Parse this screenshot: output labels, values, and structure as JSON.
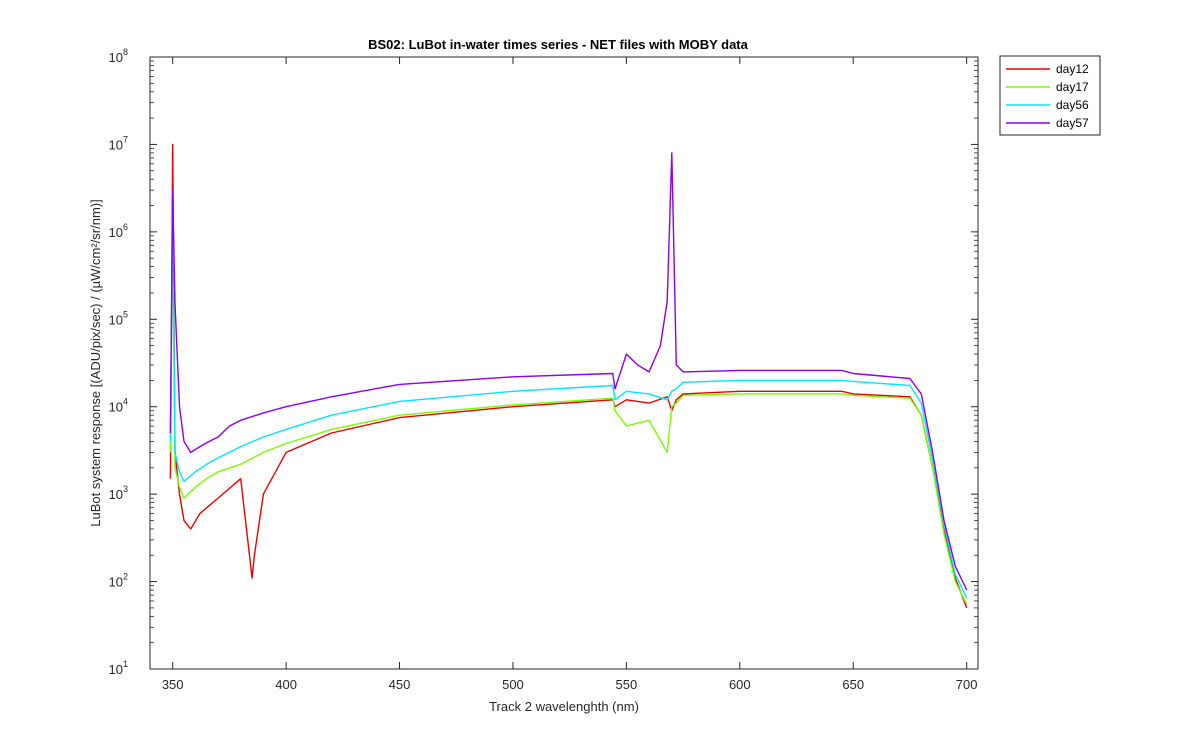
{
  "chart_data": {
    "type": "line",
    "title": "BS02: LuBot in-water times series - NET files with MOBY data",
    "xlabel": "Track 2 wavelenghth (nm)",
    "ylabel": "LuBot system response [(ADU/pix/sec) / (µW/cm²/sr/nm)]",
    "xlim": [
      340,
      705
    ],
    "ylim": [
      10,
      100000000
    ],
    "yscale": "log",
    "grid": false,
    "legend_position": "top-right (outside axes)",
    "x_ticks": [
      350,
      400,
      450,
      500,
      550,
      600,
      650,
      700
    ],
    "y_ticks": [
      {
        "value": 10,
        "base": "10",
        "exp": "1"
      },
      {
        "value": 100,
        "base": "10",
        "exp": "2"
      },
      {
        "value": 1000,
        "base": "10",
        "exp": "3"
      },
      {
        "value": 10000,
        "base": "10",
        "exp": "4"
      },
      {
        "value": 100000,
        "base": "10",
        "exp": "5"
      },
      {
        "value": 1000000,
        "base": "10",
        "exp": "6"
      },
      {
        "value": 10000000,
        "base": "10",
        "exp": "7"
      },
      {
        "value": 100000000,
        "base": "10",
        "exp": "8"
      }
    ],
    "series": [
      {
        "name": "day12",
        "color": "#e60000",
        "x": [
          349,
          350,
          351,
          353,
          355,
          358,
          362,
          370,
          380,
          385,
          386,
          390,
          400,
          420,
          450,
          500,
          544,
          545,
          550,
          560,
          568,
          570,
          572,
          575,
          600,
          645,
          650,
          675,
          680,
          685,
          690,
          695,
          700
        ],
        "y": [
          1500,
          10000000,
          3000,
          1000,
          500,
          400,
          600,
          900,
          1500,
          110,
          200,
          1000,
          3000,
          5000,
          7500,
          10000,
          12000,
          10000,
          12000,
          11000,
          13000,
          9000,
          12000,
          14000,
          15000,
          15000,
          14000,
          13000,
          8000,
          2000,
          400,
          110,
          50
        ]
      },
      {
        "name": "day17",
        "color": "#7cfc00",
        "x": [
          349,
          350,
          351,
          353,
          355,
          360,
          365,
          370,
          380,
          390,
          400,
          420,
          450,
          500,
          544,
          545,
          550,
          560,
          568,
          570,
          572,
          575,
          600,
          645,
          650,
          675,
          680,
          685,
          690,
          695,
          700
        ],
        "y": [
          3000,
          1000000,
          2000,
          1200,
          900,
          1200,
          1500,
          1800,
          2200,
          3000,
          3800,
          5500,
          8000,
          10500,
          12500,
          9000,
          6000,
          7000,
          3000,
          10000,
          11000,
          13500,
          14000,
          14000,
          13500,
          12500,
          8000,
          2000,
          350,
          100,
          55
        ]
      },
      {
        "name": "day56",
        "color": "#00e5ff",
        "x": [
          349,
          350,
          351,
          353,
          355,
          360,
          365,
          370,
          380,
          390,
          400,
          420,
          450,
          500,
          544,
          545,
          550,
          560,
          568,
          570,
          572,
          575,
          600,
          645,
          650,
          675,
          680,
          685,
          690,
          695,
          700
        ],
        "y": [
          4000,
          2000000,
          3000,
          1800,
          1400,
          1800,
          2200,
          2600,
          3500,
          4500,
          5500,
          8000,
          11500,
          15000,
          17500,
          12000,
          15000,
          14000,
          12000,
          15000,
          16000,
          19000,
          20000,
          20000,
          19500,
          17500,
          11000,
          2500,
          450,
          120,
          65
        ]
      },
      {
        "name": "day57",
        "color": "#8a00f0",
        "x": [
          349,
          350,
          351,
          353,
          355,
          358,
          362,
          366,
          370,
          375,
          380,
          390,
          400,
          420,
          450,
          500,
          544,
          545,
          550,
          555,
          560,
          565,
          568,
          570,
          572,
          575,
          600,
          645,
          650,
          675,
          680,
          685,
          690,
          695,
          700
        ],
        "y": [
          5000,
          3000000,
          150000,
          10000,
          4000,
          3000,
          3500,
          4000,
          4500,
          6000,
          7000,
          8500,
          10000,
          13000,
          18000,
          22000,
          24000,
          16000,
          40000,
          30000,
          25000,
          50000,
          160000,
          8000000,
          30000,
          25000,
          26000,
          26000,
          24000,
          21000,
          14000,
          3000,
          500,
          150,
          80
        ]
      }
    ]
  }
}
